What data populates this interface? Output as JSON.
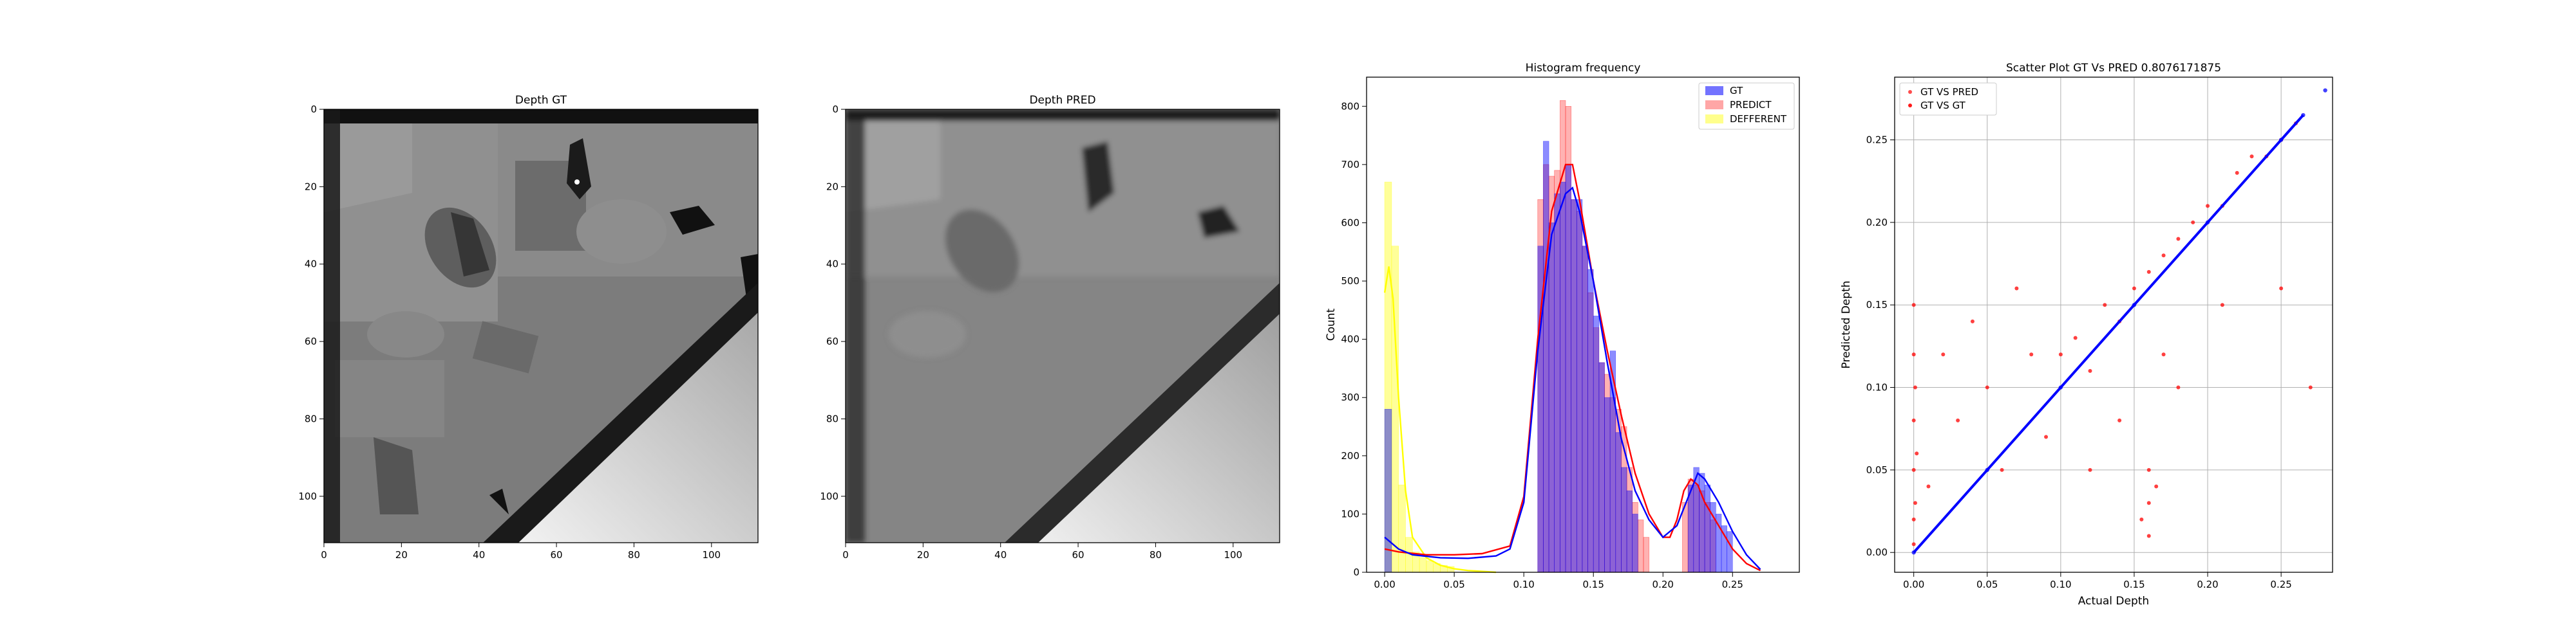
{
  "chart_data": [
    {
      "type": "heatmap",
      "title": "Depth GT",
      "xticks": [
        "0",
        "20",
        "40",
        "60",
        "80",
        "100"
      ],
      "yticks": [
        "0",
        "20",
        "40",
        "60",
        "80",
        "100"
      ],
      "xlim": [
        0,
        112
      ],
      "ylim": [
        0,
        112
      ],
      "colormap": "gray"
    },
    {
      "type": "heatmap",
      "title": "Depth PRED",
      "xticks": [
        "0",
        "20",
        "40",
        "60",
        "80",
        "100"
      ],
      "yticks": [
        "0",
        "20",
        "40",
        "60",
        "80",
        "100"
      ],
      "xlim": [
        0,
        112
      ],
      "ylim": [
        0,
        112
      ],
      "colormap": "gray"
    },
    {
      "type": "bar",
      "title": "Histogram frequency",
      "xlabel": "",
      "ylabel": "Count",
      "xlim": [
        -0.013,
        0.298
      ],
      "ylim": [
        0,
        850
      ],
      "xticks": [
        "0.00",
        "0.05",
        "0.10",
        "0.15",
        "0.20",
        "0.25"
      ],
      "yticks": [
        "0",
        "100",
        "200",
        "300",
        "400",
        "500",
        "600",
        "700",
        "800"
      ],
      "legend_position": "top-right",
      "series": [
        {
          "name": "GT",
          "color": "#0000ff",
          "bins": [
            [
              0.0,
              0.005,
              280
            ],
            [
              0.11,
              0.114,
              560
            ],
            [
              0.114,
              0.118,
              740
            ],
            [
              0.118,
              0.122,
              600
            ],
            [
              0.122,
              0.126,
              650
            ],
            [
              0.126,
              0.13,
              670
            ],
            [
              0.13,
              0.134,
              700
            ],
            [
              0.134,
              0.138,
              640
            ],
            [
              0.138,
              0.142,
              640
            ],
            [
              0.142,
              0.146,
              560
            ],
            [
              0.146,
              0.15,
              520
            ],
            [
              0.15,
              0.154,
              440
            ],
            [
              0.154,
              0.158,
              360
            ],
            [
              0.158,
              0.162,
              300
            ],
            [
              0.162,
              0.166,
              380
            ],
            [
              0.166,
              0.17,
              240
            ],
            [
              0.17,
              0.174,
              180
            ],
            [
              0.174,
              0.178,
              140
            ],
            [
              0.178,
              0.182,
              100
            ],
            [
              0.218,
              0.222,
              150
            ],
            [
              0.222,
              0.226,
              180
            ],
            [
              0.226,
              0.23,
              170
            ],
            [
              0.23,
              0.234,
              150
            ],
            [
              0.234,
              0.238,
              120
            ],
            [
              0.238,
              0.242,
              100
            ],
            [
              0.242,
              0.246,
              80
            ],
            [
              0.246,
              0.25,
              70
            ]
          ],
          "kde": [
            [
              0.0,
              60
            ],
            [
              0.005,
              50
            ],
            [
              0.01,
              40
            ],
            [
              0.02,
              30
            ],
            [
              0.04,
              25
            ],
            [
              0.06,
              24
            ],
            [
              0.08,
              28
            ],
            [
              0.09,
              40
            ],
            [
              0.1,
              120
            ],
            [
              0.11,
              380
            ],
            [
              0.12,
              580
            ],
            [
              0.13,
              650
            ],
            [
              0.135,
              660
            ],
            [
              0.14,
              620
            ],
            [
              0.15,
              500
            ],
            [
              0.16,
              360
            ],
            [
              0.17,
              230
            ],
            [
              0.18,
              140
            ],
            [
              0.19,
              90
            ],
            [
              0.2,
              60
            ],
            [
              0.21,
              80
            ],
            [
              0.22,
              140
            ],
            [
              0.225,
              170
            ],
            [
              0.23,
              160
            ],
            [
              0.24,
              120
            ],
            [
              0.25,
              70
            ],
            [
              0.26,
              30
            ],
            [
              0.27,
              5
            ]
          ]
        },
        {
          "name": "PREDICT",
          "color": "#ff0000",
          "bins": [
            [
              0.11,
              0.114,
              640
            ],
            [
              0.114,
              0.118,
              700
            ],
            [
              0.118,
              0.122,
              680
            ],
            [
              0.122,
              0.126,
              690
            ],
            [
              0.126,
              0.13,
              810
            ],
            [
              0.13,
              0.134,
              800
            ],
            [
              0.134,
              0.138,
              640
            ],
            [
              0.138,
              0.142,
              620
            ],
            [
              0.142,
              0.146,
              560
            ],
            [
              0.146,
              0.15,
              480
            ],
            [
              0.15,
              0.154,
              420
            ],
            [
              0.154,
              0.158,
              360
            ],
            [
              0.158,
              0.162,
              340
            ],
            [
              0.162,
              0.166,
              300
            ],
            [
              0.166,
              0.17,
              280
            ],
            [
              0.17,
              0.174,
              250
            ],
            [
              0.174,
              0.178,
              180
            ],
            [
              0.178,
              0.182,
              120
            ],
            [
              0.182,
              0.186,
              90
            ],
            [
              0.186,
              0.19,
              60
            ],
            [
              0.214,
              0.218,
              120
            ],
            [
              0.218,
              0.222,
              160
            ],
            [
              0.222,
              0.226,
              150
            ],
            [
              0.226,
              0.23,
              140
            ],
            [
              0.23,
              0.234,
              120
            ],
            [
              0.234,
              0.238,
              90
            ]
          ],
          "kde": [
            [
              0.0,
              40
            ],
            [
              0.01,
              35
            ],
            [
              0.03,
              30
            ],
            [
              0.05,
              30
            ],
            [
              0.07,
              32
            ],
            [
              0.09,
              45
            ],
            [
              0.1,
              130
            ],
            [
              0.11,
              400
            ],
            [
              0.12,
              620
            ],
            [
              0.13,
              700
            ],
            [
              0.135,
              700
            ],
            [
              0.14,
              640
            ],
            [
              0.15,
              500
            ],
            [
              0.16,
              380
            ],
            [
              0.17,
              270
            ],
            [
              0.18,
              170
            ],
            [
              0.19,
              100
            ],
            [
              0.2,
              60
            ],
            [
              0.205,
              60
            ],
            [
              0.21,
              90
            ],
            [
              0.215,
              140
            ],
            [
              0.22,
              160
            ],
            [
              0.225,
              150
            ],
            [
              0.23,
              120
            ],
            [
              0.24,
              80
            ],
            [
              0.25,
              40
            ],
            [
              0.26,
              15
            ],
            [
              0.27,
              3
            ]
          ]
        },
        {
          "name": "DEFFERENT",
          "color": "#ffff00",
          "bins": [
            [
              0.0,
              0.005,
              670
            ],
            [
              0.005,
              0.01,
              560
            ],
            [
              0.01,
              0.015,
              150
            ],
            [
              0.015,
              0.02,
              60
            ],
            [
              0.02,
              0.025,
              35
            ],
            [
              0.025,
              0.03,
              25
            ],
            [
              0.03,
              0.035,
              20
            ],
            [
              0.035,
              0.04,
              15
            ],
            [
              0.04,
              0.045,
              12
            ],
            [
              0.045,
              0.05,
              10
            ]
          ],
          "kde": [
            [
              0.0,
              480
            ],
            [
              0.003,
              525
            ],
            [
              0.006,
              470
            ],
            [
              0.01,
              300
            ],
            [
              0.015,
              140
            ],
            [
              0.02,
              60
            ],
            [
              0.03,
              25
            ],
            [
              0.04,
              12
            ],
            [
              0.05,
              6
            ],
            [
              0.06,
              3
            ],
            [
              0.08,
              0
            ]
          ]
        }
      ]
    },
    {
      "type": "scatter",
      "title": "Scatter Plot GT Vs PRED 0.8076171875",
      "xlabel": "Actual Depth",
      "ylabel": "Predicted Depth",
      "xlim": [
        -0.013,
        0.285
      ],
      "ylim": [
        -0.012,
        0.288
      ],
      "xticks": [
        "0.00",
        "0.05",
        "0.10",
        "0.15",
        "0.20",
        "0.25"
      ],
      "yticks": [
        "0.00",
        "0.05",
        "0.10",
        "0.15",
        "0.20",
        "0.25"
      ],
      "grid": true,
      "legend_position": "top-left",
      "series": [
        {
          "name": "GT VS PRED",
          "color": "#ff0000",
          "points": [
            [
              0.0,
              0.005
            ],
            [
              0.0,
              0.02
            ],
            [
              0.0,
              0.05
            ],
            [
              0.0,
              0.08
            ],
            [
              0.0,
              0.12
            ],
            [
              0.0,
              0.15
            ],
            [
              0.001,
              0.03
            ],
            [
              0.001,
              0.1
            ],
            [
              0.002,
              0.06
            ],
            [
              0.01,
              0.04
            ],
            [
              0.02,
              0.12
            ],
            [
              0.03,
              0.08
            ],
            [
              0.04,
              0.14
            ],
            [
              0.05,
              0.1
            ],
            [
              0.06,
              0.05
            ],
            [
              0.07,
              0.16
            ],
            [
              0.08,
              0.12
            ],
            [
              0.09,
              0.07
            ],
            [
              0.1,
              0.12
            ],
            [
              0.11,
              0.13
            ],
            [
              0.12,
              0.11
            ],
            [
              0.13,
              0.15
            ],
            [
              0.14,
              0.14
            ],
            [
              0.15,
              0.16
            ],
            [
              0.16,
              0.17
            ],
            [
              0.17,
              0.18
            ],
            [
              0.18,
              0.19
            ],
            [
              0.19,
              0.2
            ],
            [
              0.2,
              0.21
            ],
            [
              0.21,
              0.21
            ],
            [
              0.22,
              0.23
            ],
            [
              0.23,
              0.24
            ],
            [
              0.24,
              0.24
            ],
            [
              0.25,
              0.25
            ],
            [
              0.26,
              0.26
            ],
            [
              0.16,
              0.01
            ],
            [
              0.16,
              0.03
            ],
            [
              0.16,
              0.05
            ],
            [
              0.155,
              0.02
            ],
            [
              0.165,
              0.04
            ],
            [
              0.12,
              0.05
            ],
            [
              0.14,
              0.08
            ],
            [
              0.17,
              0.12
            ],
            [
              0.18,
              0.1
            ],
            [
              0.21,
              0.15
            ],
            [
              0.27,
              0.1
            ],
            [
              0.25,
              0.16
            ]
          ]
        },
        {
          "name": "GT VS GT",
          "color": "#0000ff",
          "points": [
            [
              0.0,
              0.0
            ],
            [
              0.05,
              0.05
            ],
            [
              0.1,
              0.1
            ],
            [
              0.15,
              0.15
            ],
            [
              0.2,
              0.2
            ],
            [
              0.25,
              0.25
            ],
            [
              0.265,
              0.265
            ],
            [
              0.28,
              0.28
            ]
          ]
        }
      ]
    }
  ]
}
